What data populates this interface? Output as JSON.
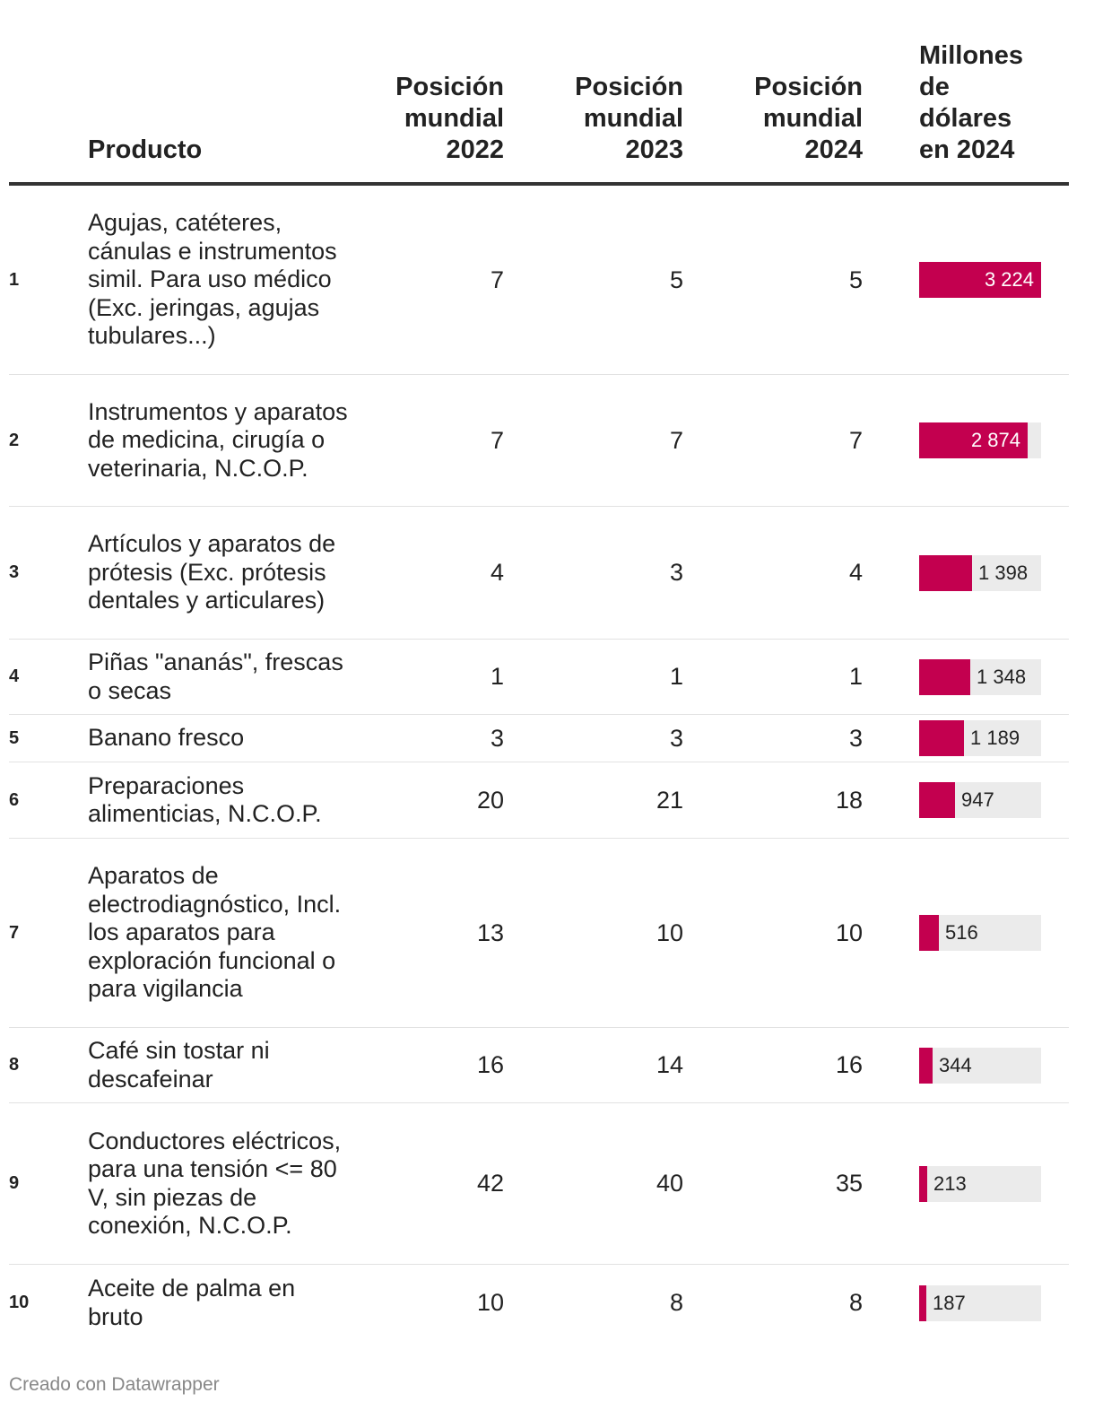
{
  "chart_data": {
    "type": "table",
    "columns": {
      "rank": "",
      "product": "Producto",
      "pos2022": "Posición mundial 2022",
      "pos2023": "Posición mundial 2023",
      "pos2024": "Posición mundial 2024",
      "value2024": "Millones de dólares en 2024"
    },
    "header_lines": {
      "pos2022": [
        "Posición",
        "mundial",
        "2022"
      ],
      "pos2023": [
        "Posición",
        "mundial",
        "2023"
      ],
      "pos2024": [
        "Posición",
        "mundial",
        "2024"
      ],
      "value2024": [
        "Millones",
        "de",
        "dólares",
        "en 2024"
      ]
    },
    "bar_color": "#c3004f",
    "bar_max": 3224,
    "rows": [
      {
        "rank": "1",
        "product": "Agujas, catéteres, cánulas e instrumentos simil. Para uso médico (Exc. jeringas, agujas tubulares...)",
        "pos2022": "7",
        "pos2023": "5",
        "pos2024": "5",
        "value": 3224,
        "value_label": "3 224"
      },
      {
        "rank": "2",
        "product": "Instrumentos y aparatos de medicina, cirugía o veterinaria, N.C.O.P.",
        "pos2022": "7",
        "pos2023": "7",
        "pos2024": "7",
        "value": 2874,
        "value_label": "2 874"
      },
      {
        "rank": "3",
        "product": "Artículos y aparatos de prótesis (Exc. prótesis dentales y articulares)",
        "pos2022": "4",
        "pos2023": "3",
        "pos2024": "4",
        "value": 1398,
        "value_label": "1 398"
      },
      {
        "rank": "4",
        "product": "Piñas \"ananás\", frescas o secas",
        "pos2022": "1",
        "pos2023": "1",
        "pos2024": "1",
        "value": 1348,
        "value_label": "1 348"
      },
      {
        "rank": "5",
        "product": "Banano fresco",
        "pos2022": "3",
        "pos2023": "3",
        "pos2024": "3",
        "value": 1189,
        "value_label": "1 189"
      },
      {
        "rank": "6",
        "product": "Preparaciones alimenticias, N.C.O.P.",
        "pos2022": "20",
        "pos2023": "21",
        "pos2024": "18",
        "value": 947,
        "value_label": "947"
      },
      {
        "rank": "7",
        "product": "Aparatos de electrodiagnóstico, Incl. los aparatos para exploración funcional o para vigilancia",
        "pos2022": "13",
        "pos2023": "10",
        "pos2024": "10",
        "value": 516,
        "value_label": "516"
      },
      {
        "rank": "8",
        "product": "Café sin tostar ni descafeinar",
        "pos2022": "16",
        "pos2023": "14",
        "pos2024": "16",
        "value": 344,
        "value_label": "344"
      },
      {
        "rank": "9",
        "product": "Conductores eléctricos, para una tensión <= 80 V, sin piezas de conexión, N.C.O.P.",
        "pos2022": "42",
        "pos2023": "40",
        "pos2024": "35",
        "value": 213,
        "value_label": "213"
      },
      {
        "rank": "10",
        "product": "Aceite de palma en bruto",
        "pos2022": "10",
        "pos2023": "8",
        "pos2024": "8",
        "value": 187,
        "value_label": "187"
      }
    ]
  },
  "footer": "Creado con Datawrapper"
}
